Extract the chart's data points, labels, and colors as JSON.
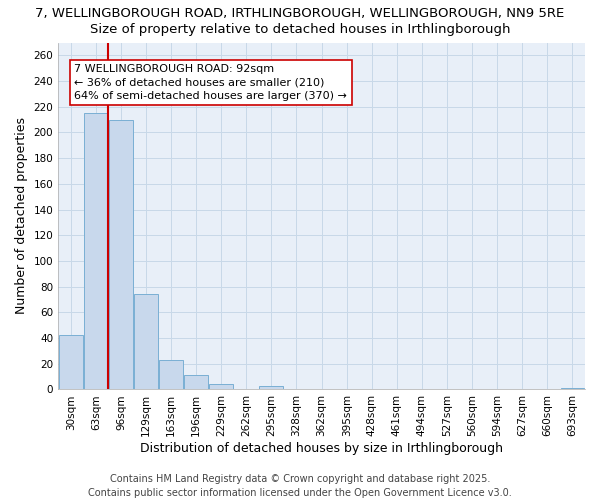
{
  "title_line1": "7, WELLINGBOROUGH ROAD, IRTHLINGBOROUGH, WELLINGBOROUGH, NN9 5RE",
  "title_line2": "Size of property relative to detached houses in Irthlingborough",
  "xlabel": "Distribution of detached houses by size in Irthlingborough",
  "ylabel": "Number of detached properties",
  "categories": [
    "30sqm",
    "63sqm",
    "96sqm",
    "129sqm",
    "163sqm",
    "196sqm",
    "229sqm",
    "262sqm",
    "295sqm",
    "328sqm",
    "362sqm",
    "395sqm",
    "428sqm",
    "461sqm",
    "494sqm",
    "527sqm",
    "560sqm",
    "594sqm",
    "627sqm",
    "660sqm",
    "693sqm"
  ],
  "values": [
    42,
    215,
    210,
    74,
    23,
    11,
    4,
    0,
    3,
    0,
    0,
    0,
    0,
    0,
    0,
    0,
    0,
    0,
    0,
    0,
    1
  ],
  "bar_color": "#c8d8ec",
  "bar_edge_color": "#7aafd4",
  "bar_linewidth": 0.7,
  "property_line_x": 1.5,
  "property_line_color": "#cc0000",
  "annotation_text": "7 WELLINGBOROUGH ROAD: 92sqm\n← 36% of detached houses are smaller (210)\n64% of semi-detached houses are larger (370) →",
  "annotation_box_facecolor": "#ffffff",
  "annotation_box_edgecolor": "#cc0000",
  "ylim": [
    0,
    270
  ],
  "yticks": [
    0,
    20,
    40,
    60,
    80,
    100,
    120,
    140,
    160,
    180,
    200,
    220,
    240,
    260
  ],
  "grid_color": "#c8d8e8",
  "background_color": "#e8eff8",
  "footer_text": "Contains HM Land Registry data © Crown copyright and database right 2025.\nContains public sector information licensed under the Open Government Licence v3.0.",
  "title_fontsize": 9.5,
  "subtitle_fontsize": 9.5,
  "axis_label_fontsize": 9,
  "tick_fontsize": 7.5,
  "annotation_fontsize": 8,
  "footer_fontsize": 7
}
